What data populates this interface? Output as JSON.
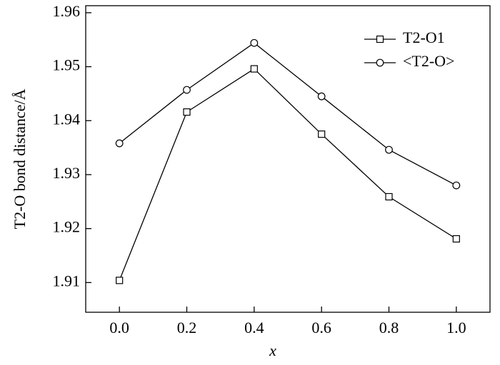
{
  "chart_data": {
    "type": "line",
    "x_label": "x",
    "y_label": "T2-O bond distance/Å",
    "x": [
      0,
      0.2,
      0.4,
      0.6,
      0.8,
      1.0
    ],
    "series": [
      {
        "name": "T2-O1",
        "color": "#000000",
        "marker": "square",
        "values": [
          1.9104,
          1.9416,
          1.9496,
          1.9375,
          1.9259,
          1.9181
        ]
      },
      {
        "name": "<T2-O>",
        "color": "#000000",
        "marker": "circle",
        "values": [
          1.9358,
          1.9457,
          1.9544,
          1.9445,
          1.9346,
          1.928
        ]
      }
    ],
    "xlim": [
      -0.1,
      1.1
    ],
    "xticks": [
      {
        "value": 0,
        "label": "0.0"
      },
      {
        "value": 0.2,
        "label": "0.2"
      },
      {
        "value": 0.4,
        "label": "0.4"
      },
      {
        "value": 0.6,
        "label": "0.6"
      },
      {
        "value": 0.8,
        "label": "0.8"
      },
      {
        "value": 1.0,
        "label": "1.0"
      }
    ],
    "ylim": [
      1.9045,
      1.9613
    ],
    "yticks": [
      1.91,
      1.92,
      1.93,
      1.94,
      1.95,
      1.96
    ],
    "grid": false,
    "legend": "upper right"
  }
}
